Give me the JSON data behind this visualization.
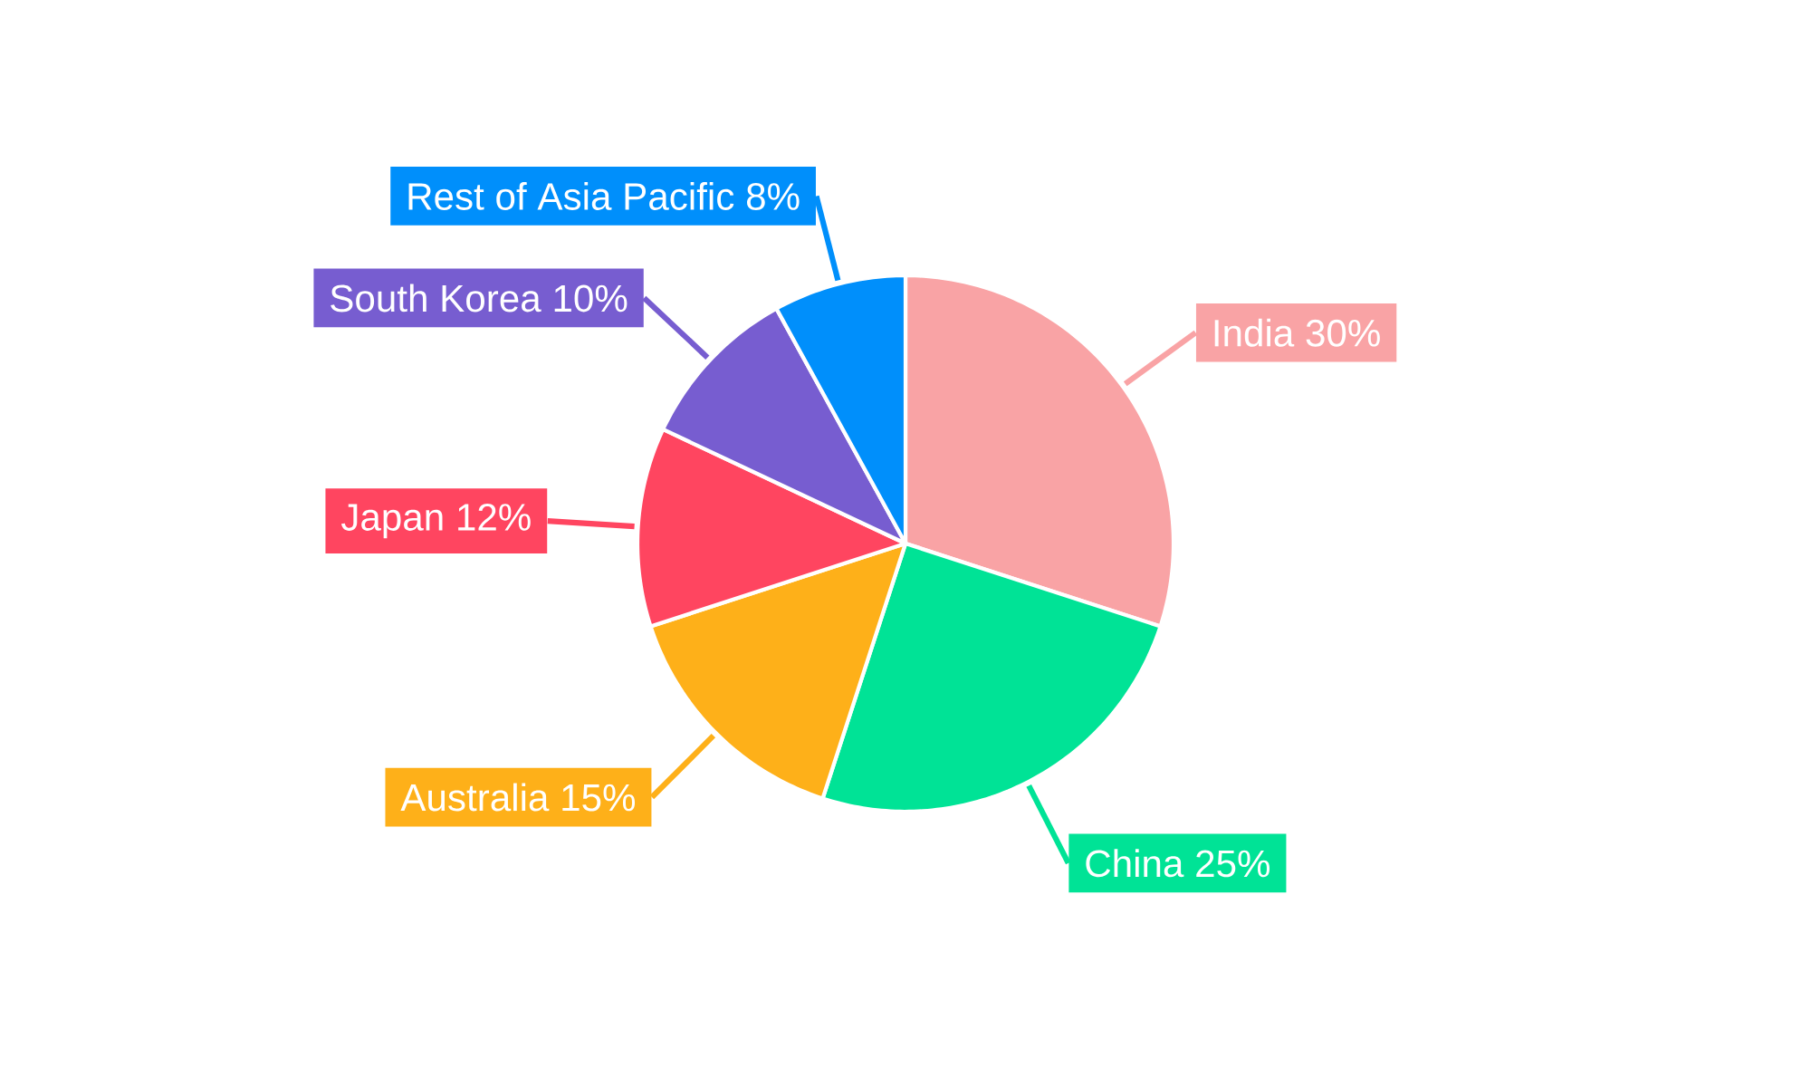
{
  "chart_data": {
    "type": "pie",
    "categories": [
      "India",
      "China",
      "Australia",
      "Japan",
      "South Korea",
      "Rest of Asia Pacific"
    ],
    "values": [
      30,
      25,
      15,
      12,
      10,
      8
    ],
    "colors": [
      "#f9a3a5",
      "#00e396",
      "#feb019",
      "#ff4560",
      "#775dd0",
      "#008ffb"
    ],
    "value_labels": [
      "30%",
      "25%",
      "15%",
      "12%",
      "10%",
      "8%"
    ]
  }
}
